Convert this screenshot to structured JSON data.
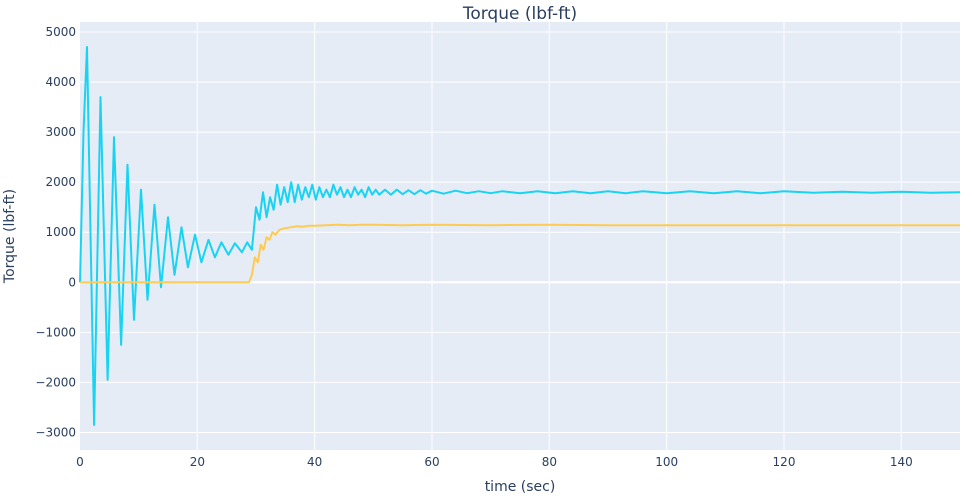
{
  "chart_data": {
    "type": "line",
    "title": "Torque (lbf-ft)",
    "xlabel": "time (sec)",
    "ylabel": "Torque (lbf-ft)",
    "xlim": [
      0,
      150
    ],
    "ylim": [
      -3350,
      5200
    ],
    "x_ticks": [
      0,
      20,
      40,
      60,
      80,
      100,
      120,
      140
    ],
    "y_ticks": [
      -3000,
      -2000,
      -1000,
      0,
      1000,
      2000,
      3000,
      4000,
      5000
    ],
    "y_tick_labels": [
      "−3000",
      "−2000",
      "−1000",
      "0",
      "1000",
      "2000",
      "3000",
      "4000",
      "5000"
    ],
    "grid": true,
    "legend": "none",
    "plot_background": "#e5ecf6",
    "grid_color": "#ffffff",
    "series": [
      {
        "color": "#19d3f3",
        "x": [
          0,
          0.6,
          1.2,
          2.4,
          3.5,
          4.7,
          5.8,
          7.0,
          8.1,
          9.2,
          10.4,
          11.5,
          12.7,
          13.8,
          15.0,
          16.1,
          17.3,
          18.4,
          19.6,
          20.7,
          21.9,
          23.0,
          24.1,
          25.3,
          26.4,
          27.6,
          28.5,
          29.3,
          30.0,
          30.6,
          31.2,
          31.8,
          32.4,
          33.0,
          33.6,
          34.2,
          34.8,
          35.4,
          36.0,
          36.6,
          37.2,
          37.8,
          38.4,
          39.0,
          39.6,
          40.2,
          40.8,
          41.4,
          42.0,
          42.6,
          43.2,
          43.8,
          44.4,
          45.0,
          45.6,
          46.2,
          46.8,
          47.4,
          48.0,
          48.6,
          49.2,
          49.8,
          50.4,
          51.0,
          52.0,
          53.0,
          54.0,
          55.0,
          56.0,
          57.0,
          58.0,
          59.0,
          60.0,
          62.0,
          64.0,
          66.0,
          68.0,
          70.0,
          72.0,
          75.0,
          78.0,
          81.0,
          84.0,
          87.0,
          90.0,
          93.0,
          96.0,
          100.0,
          104.0,
          108.0,
          112.0,
          116.0,
          120.0,
          125.0,
          130.0,
          135.0,
          140.0,
          145.0,
          150.0
        ],
        "y": [
          0,
          3000,
          4700,
          -2850,
          3700,
          -1950,
          2900,
          -1250,
          2350,
          -750,
          1850,
          -350,
          1550,
          -100,
          1300,
          150,
          1100,
          300,
          950,
          400,
          850,
          500,
          800,
          550,
          780,
          600,
          800,
          650,
          1500,
          1250,
          1800,
          1300,
          1700,
          1450,
          1950,
          1550,
          1900,
          1600,
          2000,
          1600,
          1950,
          1650,
          1900,
          1700,
          1950,
          1650,
          1900,
          1700,
          1850,
          1700,
          1950,
          1750,
          1900,
          1700,
          1850,
          1700,
          1900,
          1750,
          1850,
          1700,
          1900,
          1750,
          1850,
          1750,
          1850,
          1750,
          1850,
          1760,
          1840,
          1760,
          1840,
          1770,
          1830,
          1770,
          1830,
          1780,
          1820,
          1780,
          1820,
          1780,
          1820,
          1780,
          1820,
          1780,
          1820,
          1780,
          1820,
          1780,
          1820,
          1780,
          1820,
          1780,
          1820,
          1790,
          1810,
          1790,
          1810,
          1790,
          1800
        ]
      },
      {
        "color": "#fecb52",
        "x": [
          0,
          5,
          10,
          15,
          20,
          25,
          28.8,
          29.3,
          29.8,
          30.3,
          30.8,
          31.3,
          31.8,
          32.3,
          32.8,
          33.3,
          34.0,
          35.0,
          36.0,
          37.0,
          38.0,
          39.0,
          40.0,
          42.0,
          44.0,
          46.0,
          48.0,
          50.0,
          55.0,
          60.0,
          70.0,
          80.0,
          90.0,
          100.0,
          110.0,
          120.0,
          130.0,
          140.0,
          150.0
        ],
        "y": [
          0,
          0,
          0,
          0,
          0,
          0,
          0,
          150,
          500,
          400,
          750,
          650,
          900,
          850,
          1000,
          950,
          1050,
          1080,
          1100,
          1120,
          1110,
          1130,
          1130,
          1140,
          1150,
          1140,
          1150,
          1150,
          1140,
          1150,
          1140,
          1150,
          1140,
          1140,
          1140,
          1140,
          1140,
          1140,
          1140
        ]
      }
    ]
  }
}
